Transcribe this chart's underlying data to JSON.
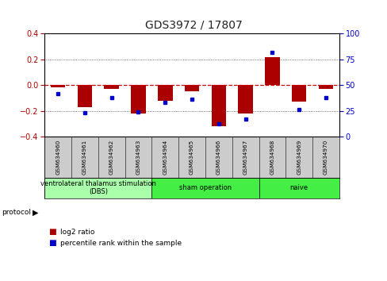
{
  "title": "GDS3972 / 17807",
  "samples": [
    "GSM634960",
    "GSM634961",
    "GSM634962",
    "GSM634963",
    "GSM634964",
    "GSM634965",
    "GSM634966",
    "GSM634967",
    "GSM634968",
    "GSM634969",
    "GSM634970"
  ],
  "log2_ratio": [
    -0.02,
    -0.17,
    -0.03,
    -0.22,
    -0.12,
    -0.05,
    -0.32,
    -0.22,
    0.22,
    -0.13,
    -0.03
  ],
  "pct_rank": [
    42,
    23,
    38,
    24,
    33,
    36,
    12,
    17,
    82,
    26,
    38
  ],
  "ylim_left": [
    -0.4,
    0.4
  ],
  "ylim_right": [
    0,
    100
  ],
  "yticks_left": [
    -0.4,
    -0.2,
    0.0,
    0.2,
    0.4
  ],
  "yticks_right": [
    0,
    25,
    50,
    75,
    100
  ],
  "bar_color": "#aa0000",
  "dot_color": "#0000cc",
  "zero_line_color": "#cc0000",
  "group_boundaries": [
    0,
    4,
    8,
    11
  ],
  "group_labels": [
    "ventrolateral thalamus stimulation\n(DBS)",
    "sham operation",
    "naive"
  ],
  "group_colors": [
    "#aaffaa",
    "#44ee44",
    "#44ee44"
  ],
  "protocol_label": "protocol",
  "legend_red": "log2 ratio",
  "legend_blue": "percentile rank within the sample",
  "bar_width": 0.55,
  "bg_color": "#ffffff",
  "label_box_color": "#cccccc",
  "dotted_line_color": "#444444",
  "title_fontsize": 10
}
